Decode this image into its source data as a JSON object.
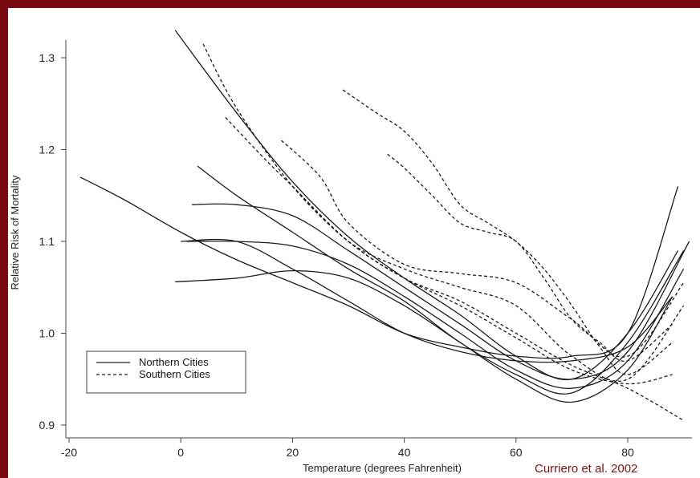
{
  "chart_data": {
    "type": "line",
    "xlabel": "Temperature (degrees Fahrenheit)",
    "ylabel": "Relative Risk of Mortality",
    "xlim": [
      -22,
      92
    ],
    "ylim": [
      0.89,
      1.34
    ],
    "xticks": [
      -20,
      0,
      20,
      40,
      60,
      80
    ],
    "yticks": [
      0.9,
      1.0,
      1.1,
      1.2,
      1.3
    ],
    "ytick_labels": [
      "0.9",
      "1.0",
      "1.1",
      "1.2",
      "1.3"
    ],
    "legend": {
      "position": "bottom-left",
      "entries": [
        {
          "label": "Northern Cities",
          "style": "solid"
        },
        {
          "label": "Southern Cities",
          "style": "dashed"
        }
      ]
    },
    "annotation": "Curriero et al. 2002",
    "series": [
      {
        "group": "northern",
        "style": "solid",
        "x": [
          -1,
          10,
          20,
          30,
          40,
          50,
          60,
          70,
          80,
          89
        ],
        "y": [
          1.33,
          1.24,
          1.165,
          1.105,
          1.06,
          1.02,
          0.975,
          0.95,
          1.0,
          1.09
        ]
      },
      {
        "group": "northern",
        "style": "solid",
        "x": [
          3,
          10,
          20,
          30,
          40,
          50,
          60,
          70,
          80,
          90
        ],
        "y": [
          1.182,
          1.15,
          1.11,
          1.07,
          1.035,
          0.99,
          0.955,
          0.935,
          0.99,
          1.09
        ]
      },
      {
        "group": "northern",
        "style": "solid",
        "x": [
          2,
          10,
          20,
          30,
          40,
          50,
          60,
          70,
          80,
          91
        ],
        "y": [
          1.14,
          1.14,
          1.128,
          1.09,
          1.05,
          1.01,
          0.97,
          0.95,
          0.98,
          1.1
        ]
      },
      {
        "group": "northern",
        "style": "solid",
        "x": [
          1,
          10,
          20,
          30,
          40,
          50,
          60,
          70,
          80,
          90
        ],
        "y": [
          1.1,
          1.1,
          1.095,
          1.075,
          1.04,
          1.0,
          0.96,
          0.94,
          0.97,
          1.07
        ]
      },
      {
        "group": "northern",
        "style": "solid",
        "x": [
          -1,
          10,
          20,
          30,
          40,
          50,
          60,
          70,
          80,
          88
        ],
        "y": [
          1.056,
          1.06,
          1.068,
          1.06,
          1.03,
          0.99,
          0.95,
          0.925,
          0.96,
          1.04
        ]
      },
      {
        "group": "northern",
        "style": "solid",
        "x": [
          -18,
          -10,
          0,
          10,
          20,
          30,
          40,
          50,
          60,
          70,
          80,
          89
        ],
        "y": [
          1.17,
          1.145,
          1.11,
          1.08,
          1.055,
          1.03,
          1.0,
          0.985,
          0.975,
          0.975,
          1.0,
          1.16
        ]
      },
      {
        "group": "northern",
        "style": "solid",
        "x": [
          0,
          10,
          20,
          30,
          40,
          50,
          60,
          70,
          80,
          88
        ],
        "y": [
          1.1,
          1.1,
          1.07,
          1.035,
          1.0,
          0.98,
          0.97,
          0.97,
          0.985,
          1.04
        ]
      },
      {
        "group": "southern",
        "style": "dashed",
        "x": [
          4,
          10,
          20,
          30,
          40,
          50,
          60,
          70,
          80,
          90
        ],
        "y": [
          1.315,
          1.245,
          1.16,
          1.1,
          1.06,
          1.035,
          1.0,
          0.965,
          0.94,
          0.905
        ]
      },
      {
        "group": "southern",
        "style": "dashed",
        "x": [
          8,
          15,
          20,
          30,
          40,
          50,
          60,
          70,
          80,
          88
        ],
        "y": [
          1.235,
          1.19,
          1.16,
          1.1,
          1.06,
          1.03,
          0.995,
          0.96,
          0.945,
          0.955
        ]
      },
      {
        "group": "southern",
        "style": "dashed",
        "x": [
          18,
          25,
          30,
          40,
          50,
          60,
          70,
          80,
          90
        ],
        "y": [
          1.21,
          1.17,
          1.12,
          1.075,
          1.065,
          1.055,
          1.015,
          0.975,
          1.055
        ]
      },
      {
        "group": "southern",
        "style": "dashed",
        "x": [
          29,
          35,
          40,
          45,
          50,
          55,
          60,
          65,
          70,
          75,
          80,
          88
        ],
        "y": [
          1.265,
          1.24,
          1.22,
          1.185,
          1.14,
          1.12,
          1.1,
          1.07,
          1.03,
          0.985,
          0.955,
          0.99
        ]
      },
      {
        "group": "southern",
        "style": "dashed",
        "x": [
          37,
          40,
          45,
          50,
          55,
          60,
          65,
          70,
          75,
          80,
          88
        ],
        "y": [
          1.195,
          1.18,
          1.15,
          1.12,
          1.11,
          1.1,
          1.06,
          1.015,
          0.99,
          0.97,
          1.01
        ]
      },
      {
        "group": "southern",
        "style": "dashed",
        "x": [
          20,
          30,
          40,
          50,
          60,
          70,
          80,
          90
        ],
        "y": [
          1.16,
          1.1,
          1.07,
          1.05,
          1.03,
          0.975,
          0.95,
          1.03
        ]
      }
    ]
  }
}
